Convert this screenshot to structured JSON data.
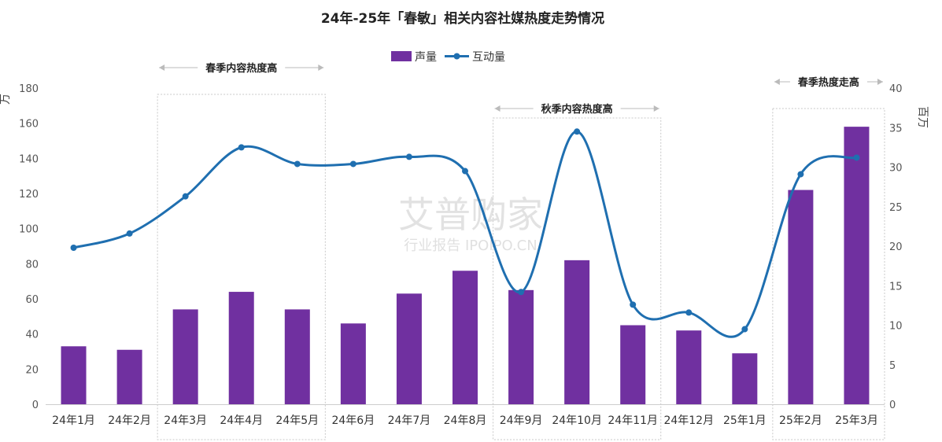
{
  "chart_data": {
    "type": "bar",
    "title": "24年-25年「春敏」相关内容社媒热度走势情况",
    "categories": [
      "24年1月",
      "24年2月",
      "24年3月",
      "24年4月",
      "24年5月",
      "24年6月",
      "24年7月",
      "24年8月",
      "24年9月",
      "24年10月",
      "24年11月",
      "24年12月",
      "25年1月",
      "25年2月",
      "25年3月"
    ],
    "series": [
      {
        "name": "声量",
        "type": "bar",
        "axis": "left",
        "color": "#7030A0",
        "values": [
          33,
          31,
          54,
          64,
          54,
          46,
          63,
          76,
          65,
          82,
          45,
          42,
          29,
          122,
          158
        ]
      },
      {
        "name": "互动量",
        "type": "line",
        "axis": "right",
        "color": "#1F6FB0",
        "values": [
          19.8,
          21.6,
          26.3,
          32.5,
          30.4,
          30.4,
          31.3,
          29.5,
          14.2,
          34.5,
          12.6,
          11.6,
          9.5,
          29.1,
          31.2
        ]
      }
    ],
    "y_left": {
      "label": "万",
      "ylim": [
        0,
        180
      ],
      "ticks": [
        0,
        20,
        40,
        60,
        80,
        100,
        120,
        140,
        160,
        180
      ]
    },
    "y_right": {
      "label": "百万",
      "ylim": [
        0,
        40
      ],
      "ticks": [
        0,
        5,
        10,
        15,
        20,
        25,
        30,
        35,
        40
      ]
    },
    "legend_position": "top-center",
    "grid": false,
    "annotations": [
      {
        "text": "春季内容热度高",
        "from": "24年3月",
        "to": "24年5月"
      },
      {
        "text": "秋季内容热度高",
        "from": "24年9月",
        "to": "24年11月"
      },
      {
        "text": "春季热度走高",
        "from": "25年2月",
        "to": "25年3月"
      }
    ]
  },
  "watermark": {
    "line1": "艾普购家",
    "line2": "行业报告 IPOIPO.CN"
  }
}
